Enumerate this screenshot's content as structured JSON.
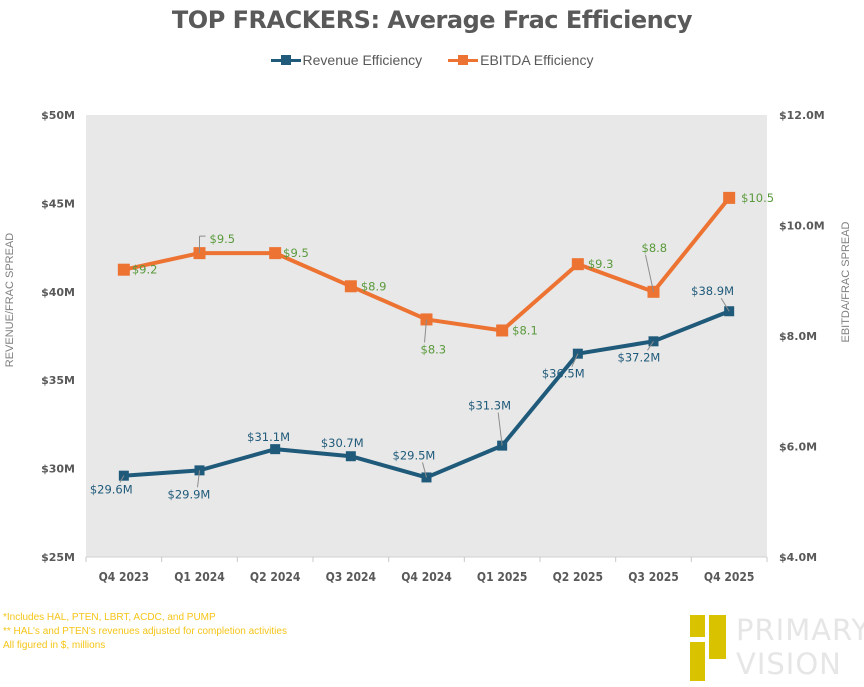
{
  "colors": {
    "revenue": "#1f5a7a",
    "ebitda": "#ed7332",
    "plot_bg": "#e8e8e8",
    "notes": "#f5c518",
    "logo_bar": "#d9c200",
    "logo_text": "#e6e6e6"
  },
  "chart_data": {
    "type": "line",
    "title": "TOP FRACKERS: Average Frac Efficiency",
    "categories": [
      "Q4 2023",
      "Q1 2024",
      "Q2 2024",
      "Q3 2024",
      "Q4 2024",
      "Q1 2025",
      "Q2 2025",
      "Q3 2025",
      "Q4 2025"
    ],
    "series": [
      {
        "name": "Revenue Efficiency",
        "axis": "left",
        "values": [
          29.6,
          29.9,
          31.1,
          30.7,
          29.5,
          31.3,
          36.5,
          37.2,
          38.9
        ],
        "labels": [
          "$29.6M",
          "$29.9M",
          "$31.1M",
          "$30.7M",
          "$29.5M",
          "$31.3M",
          "$36.5M",
          "$37.2M",
          "$38.9M"
        ]
      },
      {
        "name": "EBITDA Efficiency",
        "axis": "right",
        "values": [
          9.2,
          9.5,
          9.5,
          8.9,
          8.3,
          8.1,
          9.3,
          8.8,
          10.5
        ],
        "labels": [
          "$9.2",
          "$9.5",
          "$9.5",
          "$8.9",
          "$8.3",
          "$8.1",
          "$9.3",
          "$8.8",
          "$10.5"
        ]
      }
    ],
    "ylabel": "REVENUE/FRAC SPREAD",
    "y2label": "EBITDA/FRAC SPREAD",
    "xlabel": "",
    "ylim": [
      25,
      50
    ],
    "y2lim": [
      4,
      12
    ],
    "yticks": [
      25,
      30,
      35,
      40,
      45,
      50
    ],
    "ytick_labels": [
      "$25M",
      "$30M",
      "$35M",
      "$40M",
      "$45M",
      "$50M"
    ],
    "y2ticks": [
      4,
      6,
      8,
      10,
      12
    ],
    "y2tick_labels": [
      "$4.0M",
      "$6.0M",
      "$8.0M",
      "$10.0M",
      "$12.0M"
    ],
    "grid": false,
    "legend": "top-center"
  },
  "notes": [
    "*Includes HAL, PTEN, LBRT, ACDC, and PUMP",
    "** HAL's and PTEN's revenues adjusted for completion activities",
    "All figured in $, millions"
  ],
  "logo": {
    "line1": "PRIMARY",
    "line2": "VISION"
  }
}
